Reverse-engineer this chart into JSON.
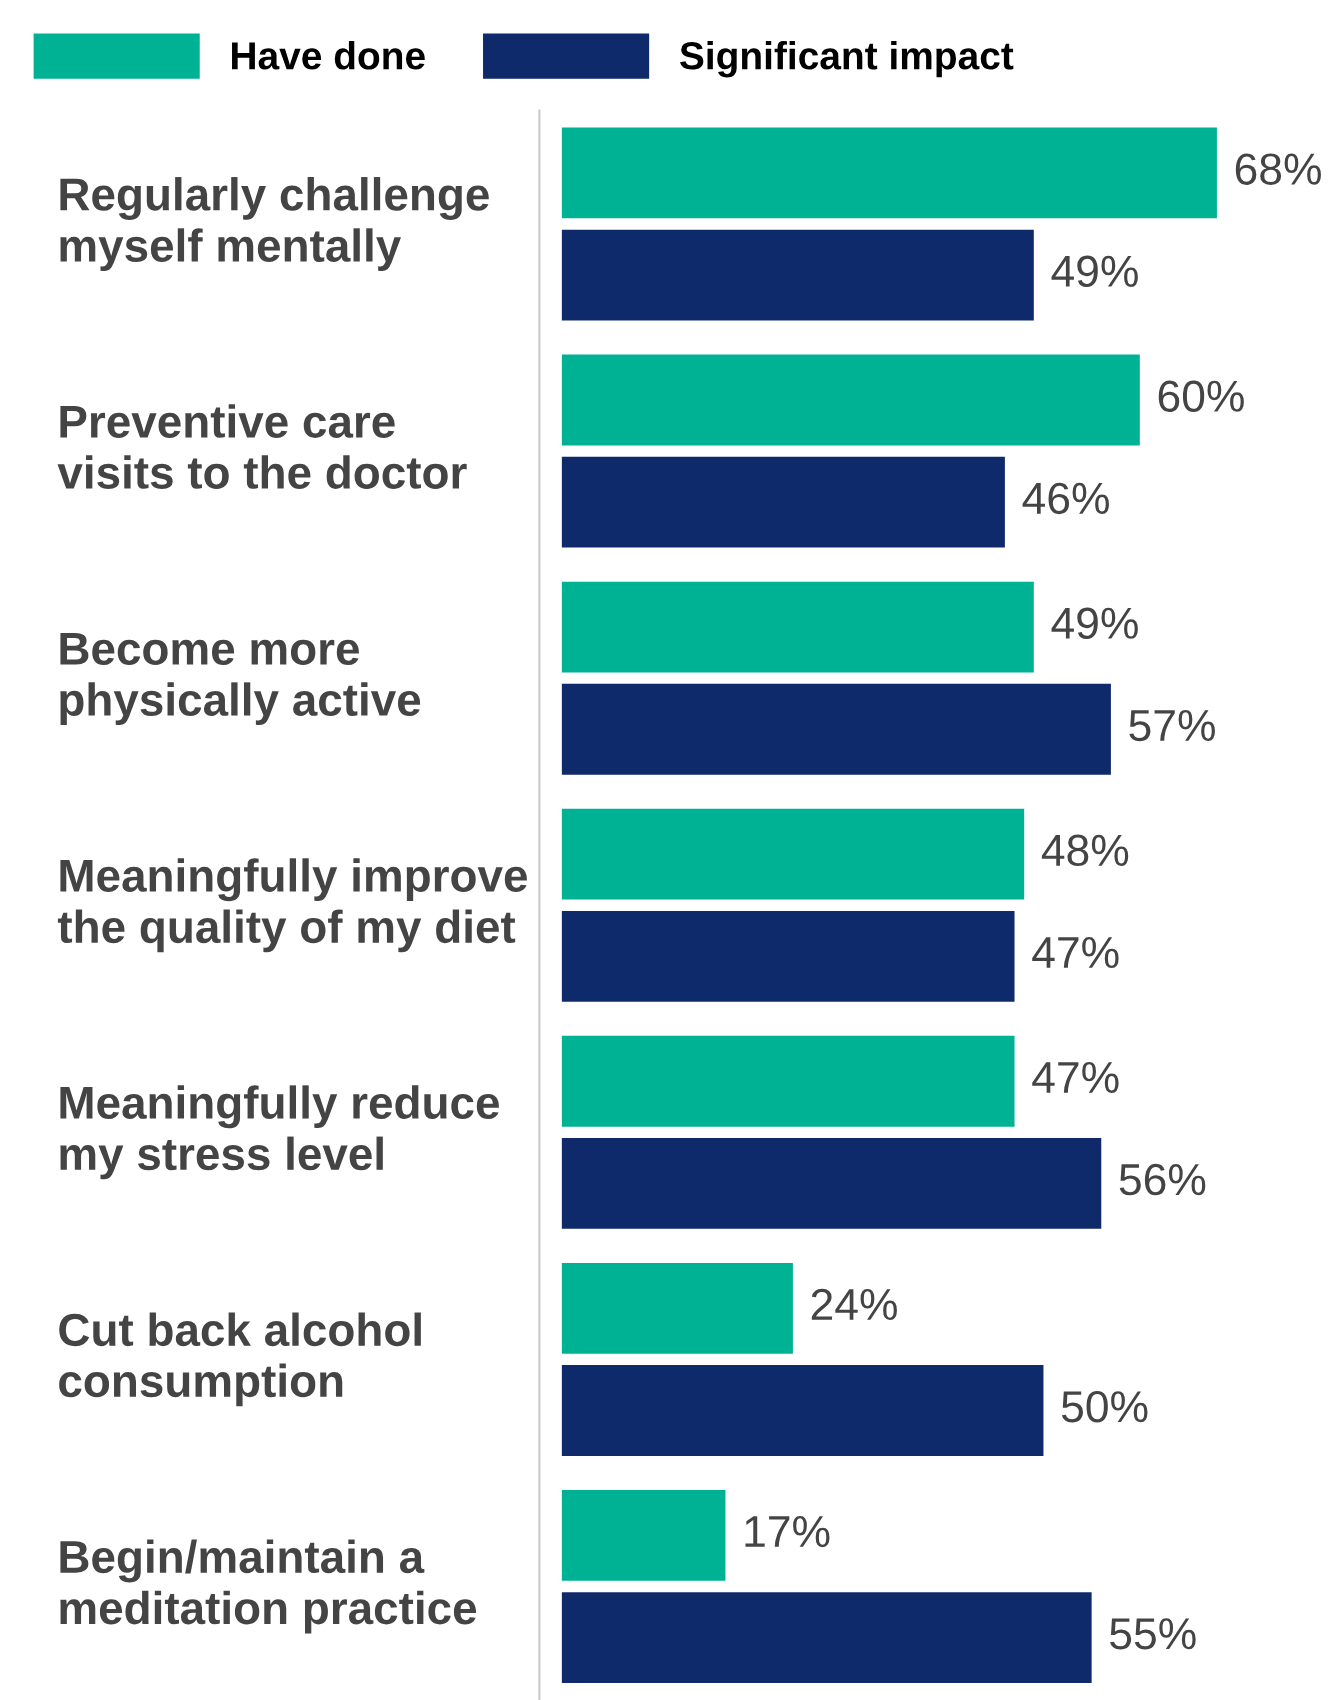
{
  "chart_data": {
    "type": "bar",
    "orientation": "horizontal",
    "categories": [
      "Regularly challenge\nmyself mentally",
      "Preventive care\nvisits to the doctor",
      "Become more\nphysically active",
      "Meaningfully improve\nthe quality of my diet",
      "Meaningfully reduce\nmy stress level",
      "Cut back alcohol\nconsumption",
      "Begin/maintain a\nmeditation practice"
    ],
    "series": [
      {
        "name": "Have done",
        "color": "#00b294",
        "values": [
          68,
          60,
          49,
          48,
          47,
          24,
          17
        ],
        "value_labels": [
          "68%",
          "60%",
          "49%",
          "48%",
          "47%",
          "24%",
          "17%"
        ]
      },
      {
        "name": "Significant impact",
        "color": "#0f2a6b",
        "values": [
          49,
          46,
          57,
          47,
          56,
          50,
          55
        ],
        "value_labels": [
          "49%",
          "46%",
          "57%",
          "47%",
          "56%",
          "50%",
          "55%"
        ]
      }
    ],
    "tick_labels": false,
    "grid": false,
    "legend": "top left"
  }
}
